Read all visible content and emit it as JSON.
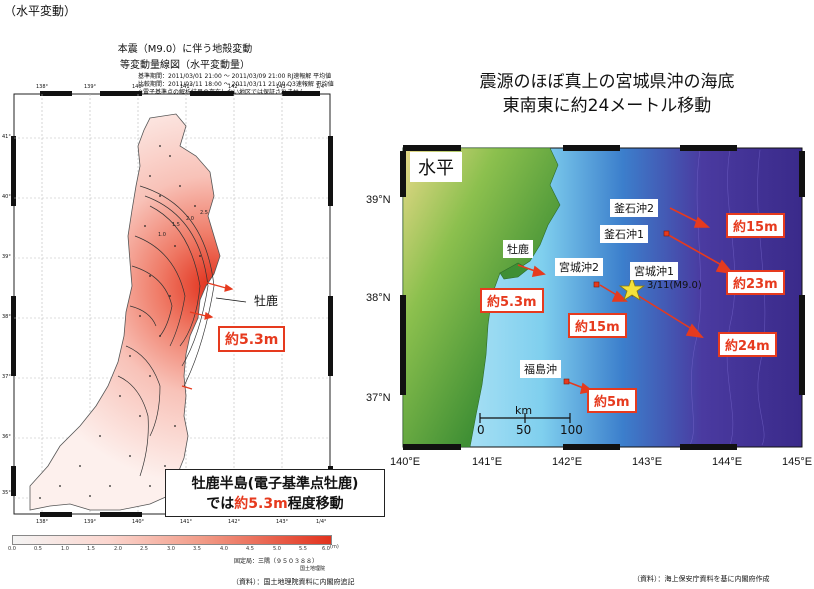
{
  "section_label": "（水平変動）",
  "left_map": {
    "title": "本震（M9.0）に伴う地殻変動",
    "subtitle": "等変動量線図（水平変動量）",
    "meta_lines": [
      "基準期間：2011/03/01 21:00 ～ 2011/03/09 21:00 RJ速報解 平均値",
      "比較期間：2011/03/11 18:00 ～ 2011/03/11 21:00 Q3速報解 平均値",
      "※電子基準点の解析結果の存在しない地区では保証されません"
    ],
    "lon_ticks": [
      "138°",
      "139°",
      "140°",
      "141°",
      "142°",
      "143°",
      "1/4°"
    ],
    "lat_ticks": [
      "41°",
      "40°",
      "39°",
      "38°",
      "37°",
      "36°",
      "35°"
    ],
    "contour_labels": [
      "1.0",
      "1.5",
      "2.0",
      "2.5"
    ],
    "oshika_label": "牡鹿",
    "oshika_callout": "約5.3m",
    "summary_line1": "牡鹿半島(電子基準点牡鹿)",
    "summary_line2_prefix": "では",
    "summary_line2_value": "約5.3m",
    "summary_line2_suffix": "程度移動",
    "colorbar_ticks": [
      "0.0",
      "0.5",
      "1.0",
      "1.5",
      "2.0",
      "2.5",
      "3.0",
      "3.5",
      "4.0",
      "4.5",
      "5.0",
      "5.5",
      "6.0"
    ],
    "colorbar_unit": "(m)",
    "fixed_station": "固定局：三隅（９５０３８８）",
    "org": "国土地理院",
    "source": "（資料）：国土地理院資料に内閣府追記"
  },
  "right_map": {
    "headline1": "震源のほぼ真上の宮城県沖の海底",
    "headline2": "東南東に約24メートル移動",
    "panel_label": "水平",
    "lat_labels": [
      "39°N",
      "38°N",
      "37°N"
    ],
    "lon_labels": [
      "140°E",
      "141°E",
      "142°E",
      "143°E",
      "144°E",
      "145°E"
    ],
    "scale_unit": "km",
    "scale_ticks": [
      "0",
      "50",
      "100"
    ],
    "epicenter_label": "3/11(M9.0)",
    "sites": [
      {
        "name": "釜石沖2",
        "value": "約15m"
      },
      {
        "name": "釜石沖1",
        "value": "約23m"
      },
      {
        "name": "宮城沖1",
        "value": "約24m"
      },
      {
        "name": "宮城沖2",
        "value": "約15m"
      },
      {
        "name": "牡鹿",
        "value": "約5.3m"
      },
      {
        "name": "福島沖",
        "value": "約5m"
      }
    ],
    "source": "（資料）：海上保安庁資料を基に内閣府作成"
  },
  "colors": {
    "arrow": "#e63a1e",
    "callout_border": "#e63a1e",
    "deep_sea": "#3a2a8a",
    "shelf": "#9fd8f0",
    "land": "#5aa03a"
  }
}
